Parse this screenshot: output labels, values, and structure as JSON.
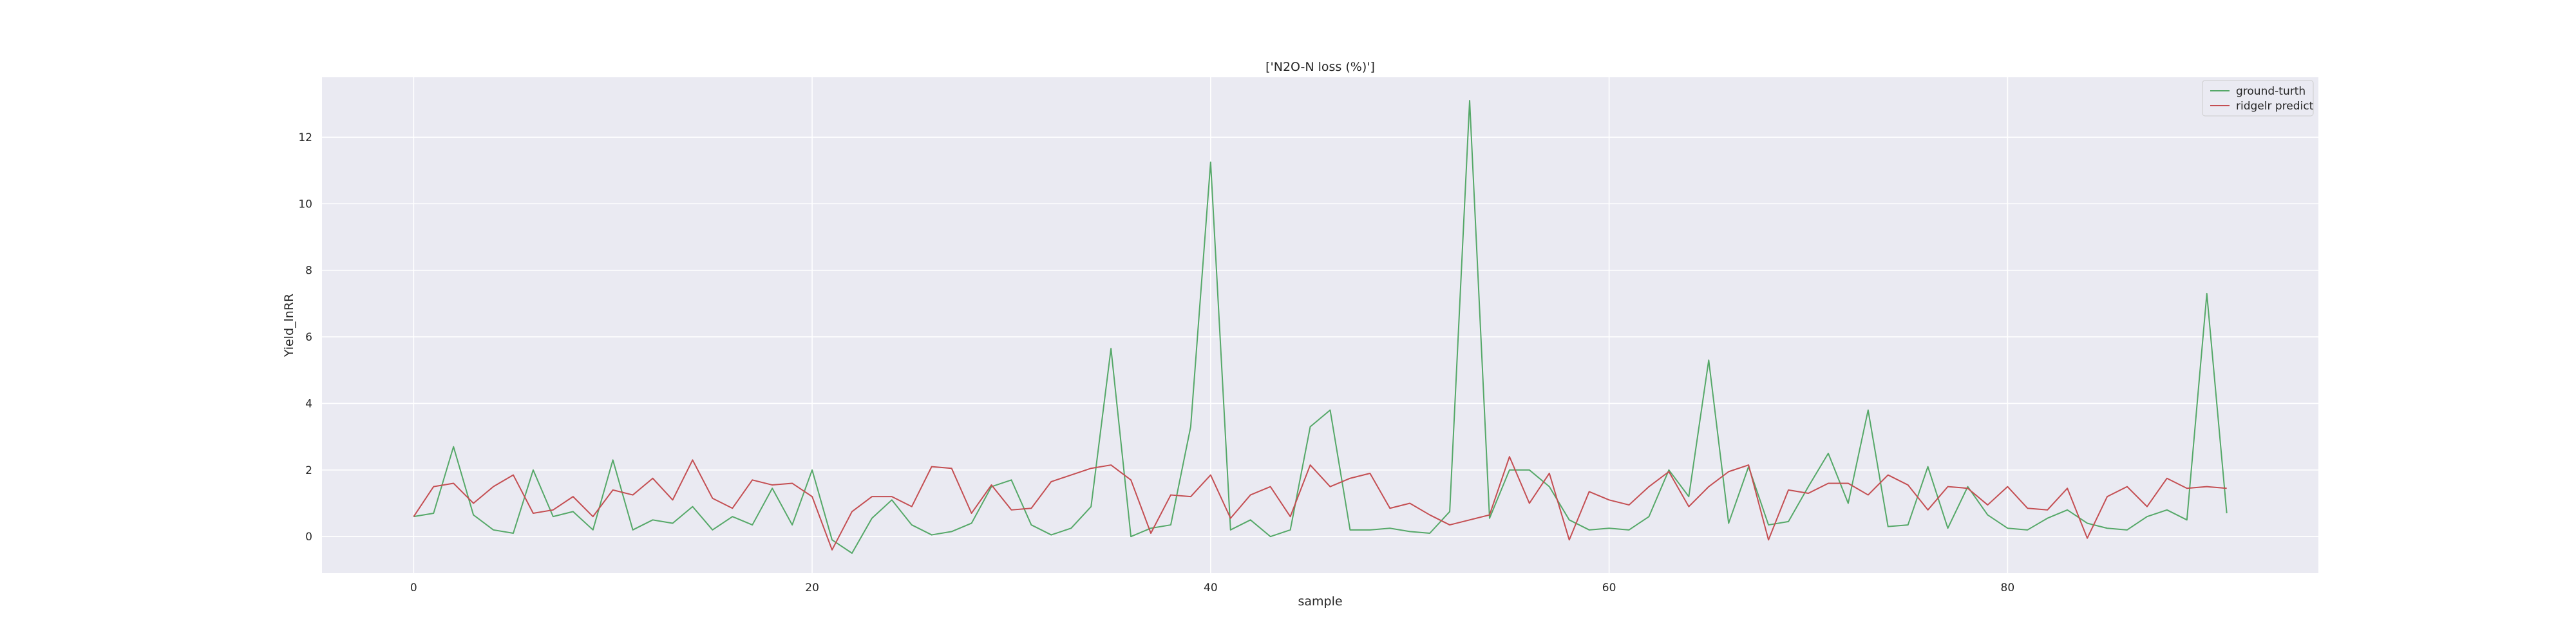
{
  "chart_data": {
    "type": "line",
    "title": "['N2O-N loss (%)']",
    "xlabel": "sample",
    "ylabel": "Yield_lnRR",
    "xlim": [
      -4.6,
      95.6
    ],
    "ylim": [
      -1.1,
      13.8
    ],
    "xticks": [
      0,
      20,
      40,
      60,
      80
    ],
    "yticks": [
      0,
      2,
      4,
      6,
      8,
      10,
      12
    ],
    "grid": true,
    "legend_position": "top-right",
    "series": [
      {
        "name": "ground-turth",
        "color": "#55a868",
        "values": [
          0.6,
          0.7,
          2.7,
          0.65,
          0.2,
          0.1,
          2.0,
          0.6,
          0.75,
          0.2,
          2.3,
          0.2,
          0.5,
          0.4,
          0.9,
          0.2,
          0.6,
          0.35,
          1.45,
          0.35,
          2.0,
          -0.1,
          -0.5,
          0.55,
          1.1,
          0.35,
          0.05,
          0.15,
          0.4,
          1.5,
          1.7,
          0.35,
          0.05,
          0.25,
          0.9,
          5.65,
          0.0,
          0.25,
          0.35,
          3.3,
          11.25,
          0.2,
          0.5,
          0.0,
          0.2,
          3.3,
          3.8,
          0.2,
          0.2,
          0.25,
          0.15,
          0.1,
          0.75,
          13.1,
          0.55,
          2.0,
          2.0,
          1.5,
          0.5,
          0.2,
          0.25,
          0.2,
          0.6,
          2.0,
          1.2,
          5.3,
          0.4,
          2.1,
          0.35,
          0.45,
          1.5,
          2.5,
          1.0,
          3.8,
          0.3,
          0.35,
          2.1,
          0.25,
          1.5,
          0.65,
          0.25,
          0.2,
          0.55,
          0.8,
          0.4,
          0.25,
          0.2,
          0.6,
          0.8,
          0.5,
          7.3,
          0.7
        ]
      },
      {
        "name": "ridgelr predict",
        "color": "#c44e52",
        "values": [
          0.6,
          1.5,
          1.6,
          1.0,
          1.5,
          1.85,
          0.7,
          0.8,
          1.2,
          0.6,
          1.4,
          1.25,
          1.75,
          1.1,
          2.3,
          1.15,
          0.85,
          1.7,
          1.55,
          1.6,
          1.2,
          -0.4,
          0.75,
          1.2,
          1.2,
          0.9,
          2.1,
          2.05,
          0.7,
          1.55,
          0.8,
          0.85,
          1.65,
          1.85,
          2.05,
          2.15,
          1.7,
          0.1,
          1.25,
          1.2,
          1.85,
          0.55,
          1.25,
          1.5,
          0.6,
          2.15,
          1.5,
          1.75,
          1.9,
          0.85,
          1.0,
          0.65,
          0.35,
          0.5,
          0.65,
          2.4,
          1.0,
          1.9,
          -0.1,
          1.35,
          1.1,
          0.95,
          1.5,
          1.95,
          0.9,
          1.5,
          1.95,
          2.15,
          -0.1,
          1.4,
          1.3,
          1.6,
          1.6,
          1.25,
          1.85,
          1.55,
          0.8,
          1.5,
          1.45,
          0.95,
          1.5,
          0.85,
          0.8,
          1.45,
          -0.05,
          1.2,
          1.5,
          0.9,
          1.75,
          1.45,
          1.5,
          1.45
        ]
      }
    ]
  }
}
